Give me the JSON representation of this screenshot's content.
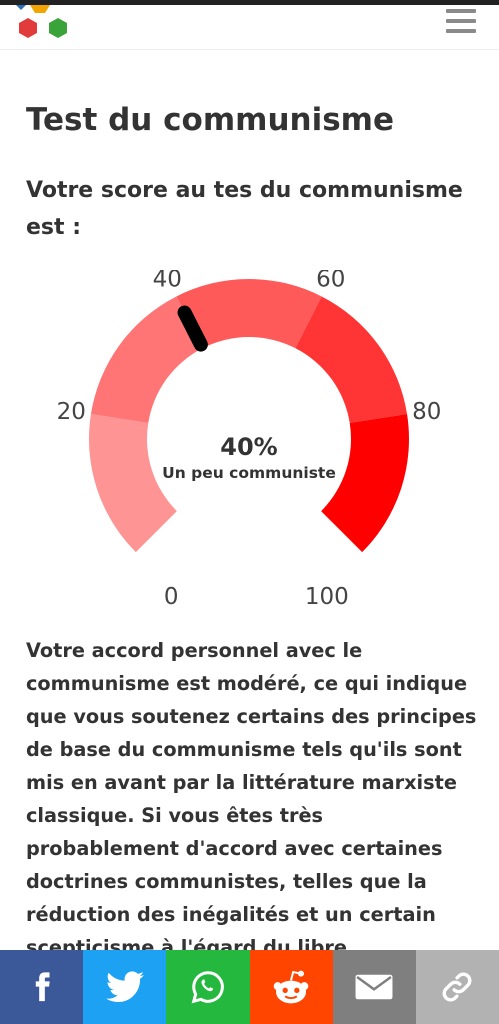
{
  "header": {
    "logo_icon": "hexagon-logo-icon",
    "menu_icon": "hamburger-menu-icon"
  },
  "page": {
    "title": "Test du communisme",
    "score_heading": "Votre score au tes du communisme est :"
  },
  "gauge": {
    "value": 40,
    "min": 0,
    "max": 100,
    "value_label": "40%",
    "result_label": "Un peu communiste",
    "tick_labels": [
      "0",
      "20",
      "40",
      "60",
      "80",
      "100"
    ],
    "band_colors": [
      "#ff9494",
      "#ff7575",
      "#ff5a5a",
      "#ff3535",
      "#ff0000"
    ],
    "needle_color": "#000000",
    "label_color": "#444444"
  },
  "description": "Votre accord personnel avec le communisme est modéré, ce qui indique que vous soutenez certains des principes de base du communisme tels qu'ils sont mis en avant par la littérature marxiste classique. Si vous êtes très probablement d'accord avec certaines doctrines communistes, telles que la réduction des inégalités et un certain scepticisme à l'égard du libre",
  "share_bar": [
    {
      "name": "facebook",
      "icon": "facebook-icon",
      "color": "#3b5998"
    },
    {
      "name": "twitter",
      "icon": "twitter-icon",
      "color": "#1da1f2"
    },
    {
      "name": "whatsapp",
      "icon": "whatsapp-icon",
      "color": "#25b83f"
    },
    {
      "name": "reddit",
      "icon": "reddit-icon",
      "color": "#ff4500"
    },
    {
      "name": "email",
      "icon": "email-icon",
      "color": "#7f7f7f"
    },
    {
      "name": "link",
      "icon": "link-icon",
      "color": "#b2b2b2"
    }
  ]
}
